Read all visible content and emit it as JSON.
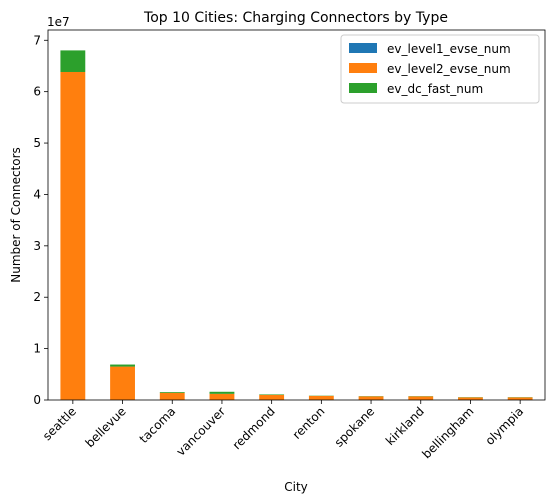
{
  "chart_data": {
    "type": "bar",
    "stacked": true,
    "title": "Top 10 Cities: Charging Connectors by Type",
    "xlabel": "City",
    "ylabel": "Number of Connectors",
    "y_multiplier_label": "1e7",
    "y_tick_labels": [
      "0",
      "1",
      "2",
      "3",
      "4",
      "5",
      "6",
      "7"
    ],
    "ylim": [
      0,
      7.2
    ],
    "legend_position": "top-right",
    "grid": false,
    "categories": [
      "seattle",
      "bellevue",
      "tacoma",
      "vancouver",
      "redmond",
      "renton",
      "spokane",
      "kirkland",
      "bellingham",
      "olympia"
    ],
    "series": [
      {
        "name": "ev_level1_evse_num",
        "color": "#1f77b4",
        "values": [
          0.003,
          0.0,
          0.0,
          0.0,
          0.0,
          0.0,
          0.0,
          0.0,
          0.0,
          0.0
        ]
      },
      {
        "name": "ev_level2_evse_num",
        "color": "#ff7f0e",
        "values": [
          6.38,
          0.65,
          0.14,
          0.12,
          0.1,
          0.08,
          0.07,
          0.07,
          0.05,
          0.05
        ]
      },
      {
        "name": "ev_dc_fast_num",
        "color": "#2ca02c",
        "values": [
          0.42,
          0.04,
          0.015,
          0.04,
          0.01,
          0.005,
          0.005,
          0.005,
          0.005,
          0.005
        ]
      }
    ]
  }
}
